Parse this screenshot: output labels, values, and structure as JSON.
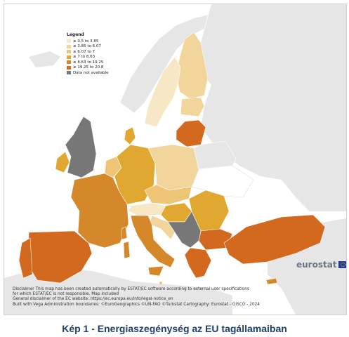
{
  "legend": {
    "title": "Legend",
    "items": [
      {
        "label": "≥ 0.5 to 3.85",
        "color": "#f7e7c4"
      },
      {
        "label": "≥ 3.85 to 6.07",
        "color": "#f1d59a"
      },
      {
        "label": "≥ 6.07 to 7",
        "color": "#eec574"
      },
      {
        "label": "≥ 7 to 8.63",
        "color": "#e0a830"
      },
      {
        "label": "≥ 8.63 to 19.25",
        "color": "#d4882a"
      },
      {
        "label": "≥ 19.25 to 20.8",
        "color": "#d2691f"
      },
      {
        "label": "Data not available",
        "color": "#777777"
      }
    ]
  },
  "colors": {
    "sea": "#ffffff",
    "non_eu_land": "#e6e6e6",
    "border": "#ffffff"
  },
  "disclaimer": {
    "line1": "Disclaimer This map has been created automatically by ESTAT/EC software according to external user specifications",
    "line2": "for which ESTAT/EC is not responsible. Map included",
    "line3": "General disclaimer of the EC website: https://ec.europa.eu/info/legal-notice_en",
    "line4": "Built with Vega Administration boundaries: ©EuroGeographics ©UN-FAO ©Turkstat Cartography: Eurostat - GISCO - 2024"
  },
  "logo": {
    "text": "eurostat"
  },
  "caption": "Kép 1 - Energiaszegénység az EU tagállamaiban"
}
